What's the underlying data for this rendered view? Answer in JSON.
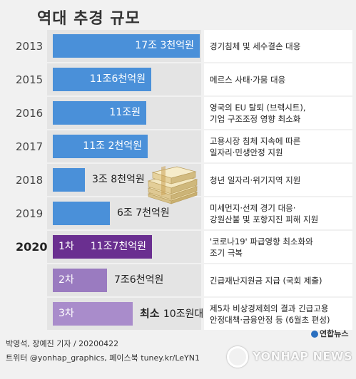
{
  "title": "역대 추경 규모",
  "chart_data": {
    "type": "bar",
    "orientation": "horizontal",
    "unit": "조원",
    "categories": [
      "2013",
      "2015",
      "2016",
      "2017",
      "2018",
      "2019",
      "2020",
      "",
      ""
    ],
    "values": [
      17.3,
      11.6,
      11.0,
      11.2,
      3.8,
      6.7,
      11.7,
      7.6,
      10.0
    ],
    "value_labels": [
      "17조 3천억원",
      "11조6천억원",
      "11조원",
      "11조 2천억원",
      "3조 8천억원",
      "6조 7천억원",
      "11조7천억원",
      "7조6천억원",
      "10조원대"
    ],
    "value_prefixes": [
      "",
      "",
      "",
      "",
      "",
      "",
      "",
      "",
      "최소"
    ],
    "tags": [
      "",
      "",
      "",
      "",
      "",
      "",
      "1차",
      "2차",
      "3차"
    ],
    "descriptions": [
      [
        "경기침체 및 세수결손 대응"
      ],
      [
        "메르스 사태·가뭄 대응"
      ],
      [
        "영국의 EU 탈퇴 (브렉시트),",
        "기업 구조조정 영향 최소화"
      ],
      [
        "고용시장 침체 지속에 따른",
        "일자리·민생안정 지원"
      ],
      [
        "청년 일자리·위기지역 지원"
      ],
      [
        "미세먼지·선제 경기 대응·",
        "강원산불 및 포항지진 피해 지원"
      ],
      [
        "'코로나19' 파급영향 최소화와",
        "조기 극복"
      ],
      [
        "긴급재난지원금 지급 (국회 제출)"
      ],
      [
        "제5차 비상경제회의 결과 긴급고용",
        "안정대책·금융안정 등 (6월초 편성)"
      ]
    ],
    "xlim": [
      0,
      17.3
    ]
  },
  "footer": {
    "line1": "박영석, 장예진 기자 / 20200422",
    "line2": "트위터 @yonhap_graphics, 페이스북 tuney.kr/LeYN1"
  },
  "logo_small": "연합뉴스",
  "watermark": "YONHAP NEWS"
}
